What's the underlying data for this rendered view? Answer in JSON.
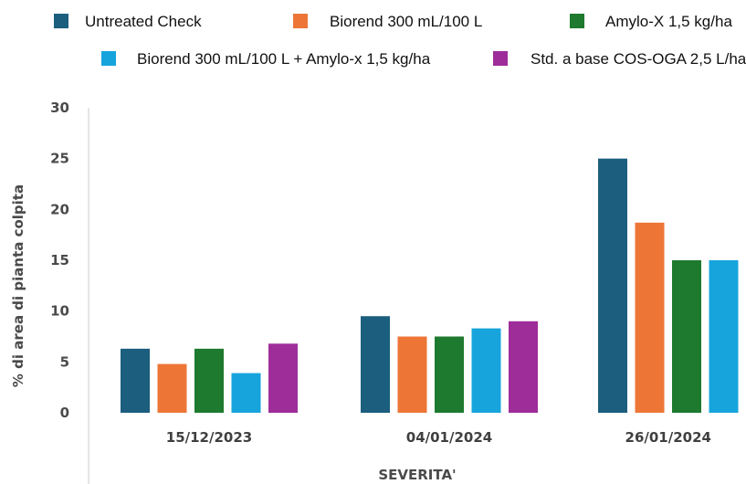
{
  "chart_data": {
    "type": "bar",
    "categories": [
      "15/12/2023",
      "04/01/2024",
      "26/01/2024"
    ],
    "series": [
      {
        "name": "Untreated Check",
        "color": "#1b5e7e",
        "values": [
          6.3,
          9.5,
          25
        ]
      },
      {
        "name": "Biorend 300 mL/100 L",
        "color": "#ed7637",
        "values": [
          4.8,
          7.5,
          18.7
        ]
      },
      {
        "name": "Amylo-X 1,5 kg/ha",
        "color": "#1d7a2e",
        "values": [
          6.3,
          7.5,
          15
        ]
      },
      {
        "name": "Biorend 300 mL/100 L + Amylo-x 1,5 kg/ha",
        "color": "#17a4dd",
        "values": [
          3.9,
          8.3,
          15
        ]
      },
      {
        "name": "Std. a base COS-OGA 2,5 L/ha",
        "color": "#9e2d9a",
        "values": [
          6.8,
          9,
          null
        ]
      }
    ],
    "ylabel": "% di area di pianta colpita",
    "xlabel": "SEVERITA'",
    "ylim": [
      0,
      30
    ],
    "yticks": [
      0,
      5,
      10,
      15,
      20,
      25,
      30
    ],
    "grid": false,
    "legend": "top"
  }
}
